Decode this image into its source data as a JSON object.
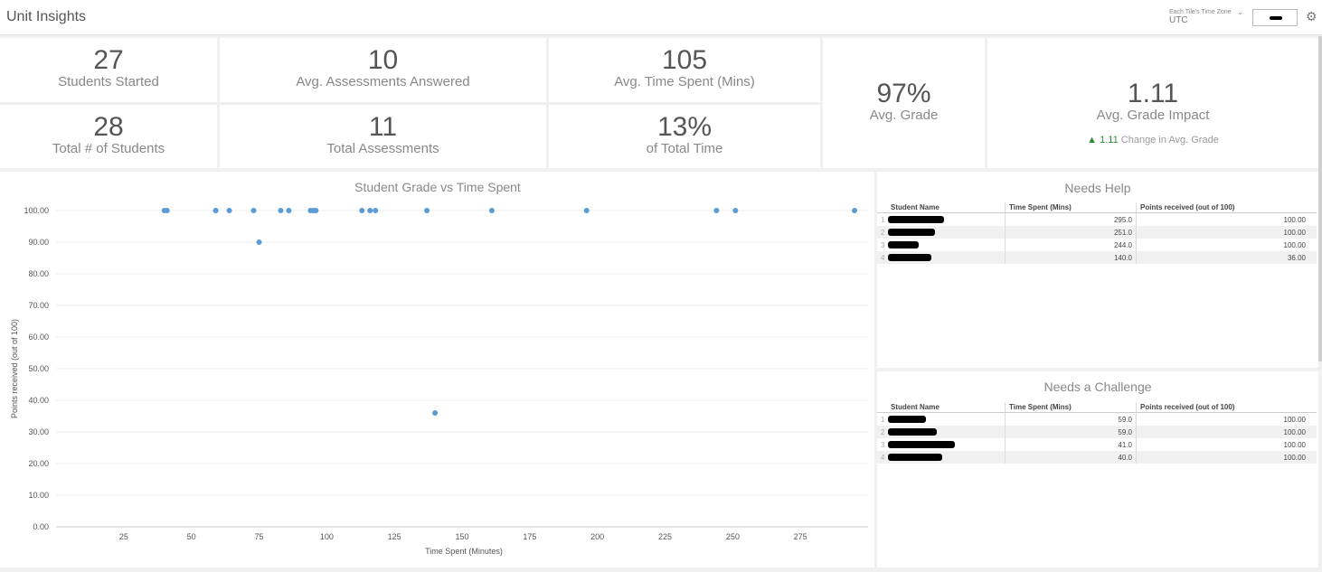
{
  "header": {
    "title": "Unit Insights",
    "timezone_label": "Each Tile's Time Zone",
    "timezone_value": "UTC",
    "chevron_icon": "chevron-down-icon",
    "settings_icon": "gear-icon"
  },
  "tiles": {
    "students_started": {
      "value": "27",
      "label": "Students Started"
    },
    "total_students": {
      "value": "28",
      "label": "Total # of Students"
    },
    "avg_assessments": {
      "value": "10",
      "label": "Avg. Assessments Answered"
    },
    "total_assessments": {
      "value": "11",
      "label": "Total Assessments"
    },
    "avg_time": {
      "value": "105",
      "label": "Avg. Time Spent (Mins)"
    },
    "pct_total_time": {
      "value": "13%",
      "label": "of Total Time"
    },
    "avg_grade": {
      "value": "97%",
      "label": "Avg. Grade"
    },
    "grade_impact": {
      "value": "1.11",
      "label": "Avg. Grade Impact",
      "change_value": "1.11",
      "change_label": "Change in Avg. Grade",
      "change_color": "#2e8b3a"
    }
  },
  "chart_data": {
    "type": "scatter",
    "title": "Student Grade vs Time Spent",
    "xlabel": "Time Spent (Minutes)",
    "ylabel": "Points received (out of 100)",
    "xlim": [
      0,
      300
    ],
    "ylim": [
      0,
      100
    ],
    "x_ticks": [
      "25",
      "50",
      "75",
      "100",
      "125",
      "150",
      "175",
      "200",
      "225",
      "250",
      "275"
    ],
    "y_ticks": [
      "0.00",
      "10.00",
      "20.00",
      "30.00",
      "40.00",
      "50.00",
      "60.00",
      "70.00",
      "80.00",
      "90.00",
      "100.00"
    ],
    "grid": true,
    "color": "#5b9bd5",
    "points": [
      [
        40,
        100
      ],
      [
        41,
        100
      ],
      [
        59,
        100
      ],
      [
        59,
        100
      ],
      [
        64,
        100
      ],
      [
        73,
        100
      ],
      [
        75,
        90
      ],
      [
        83,
        100
      ],
      [
        86,
        100
      ],
      [
        94,
        100
      ],
      [
        95,
        100
      ],
      [
        96,
        100
      ],
      [
        113,
        100
      ],
      [
        116,
        100
      ],
      [
        118,
        100
      ],
      [
        137,
        100
      ],
      [
        140,
        36
      ],
      [
        161,
        100
      ],
      [
        196,
        100
      ],
      [
        244,
        100
      ],
      [
        251,
        100
      ],
      [
        295,
        100
      ]
    ]
  },
  "needs_help": {
    "title": "Needs Help",
    "columns": [
      "Student Name",
      "Time Spent (Mins)",
      "Points received (out of 100)"
    ],
    "rows": [
      {
        "idx": "1",
        "time": "295.0",
        "points": "100.00"
      },
      {
        "idx": "2",
        "time": "251.0",
        "points": "100.00"
      },
      {
        "idx": "3",
        "time": "244.0",
        "points": "100.00"
      },
      {
        "idx": "4",
        "time": "140.0",
        "points": "36.00"
      }
    ]
  },
  "needs_challenge": {
    "title": "Needs a Challenge",
    "columns": [
      "Student Name",
      "Time Spent (Mins)",
      "Points received (out of 100)"
    ],
    "rows": [
      {
        "idx": "1",
        "time": "59.0",
        "points": "100.00"
      },
      {
        "idx": "2",
        "time": "59.0",
        "points": "100.00"
      },
      {
        "idx": "3",
        "time": "41.0",
        "points": "100.00"
      },
      {
        "idx": "4",
        "time": "40.0",
        "points": "100.00"
      }
    ]
  }
}
